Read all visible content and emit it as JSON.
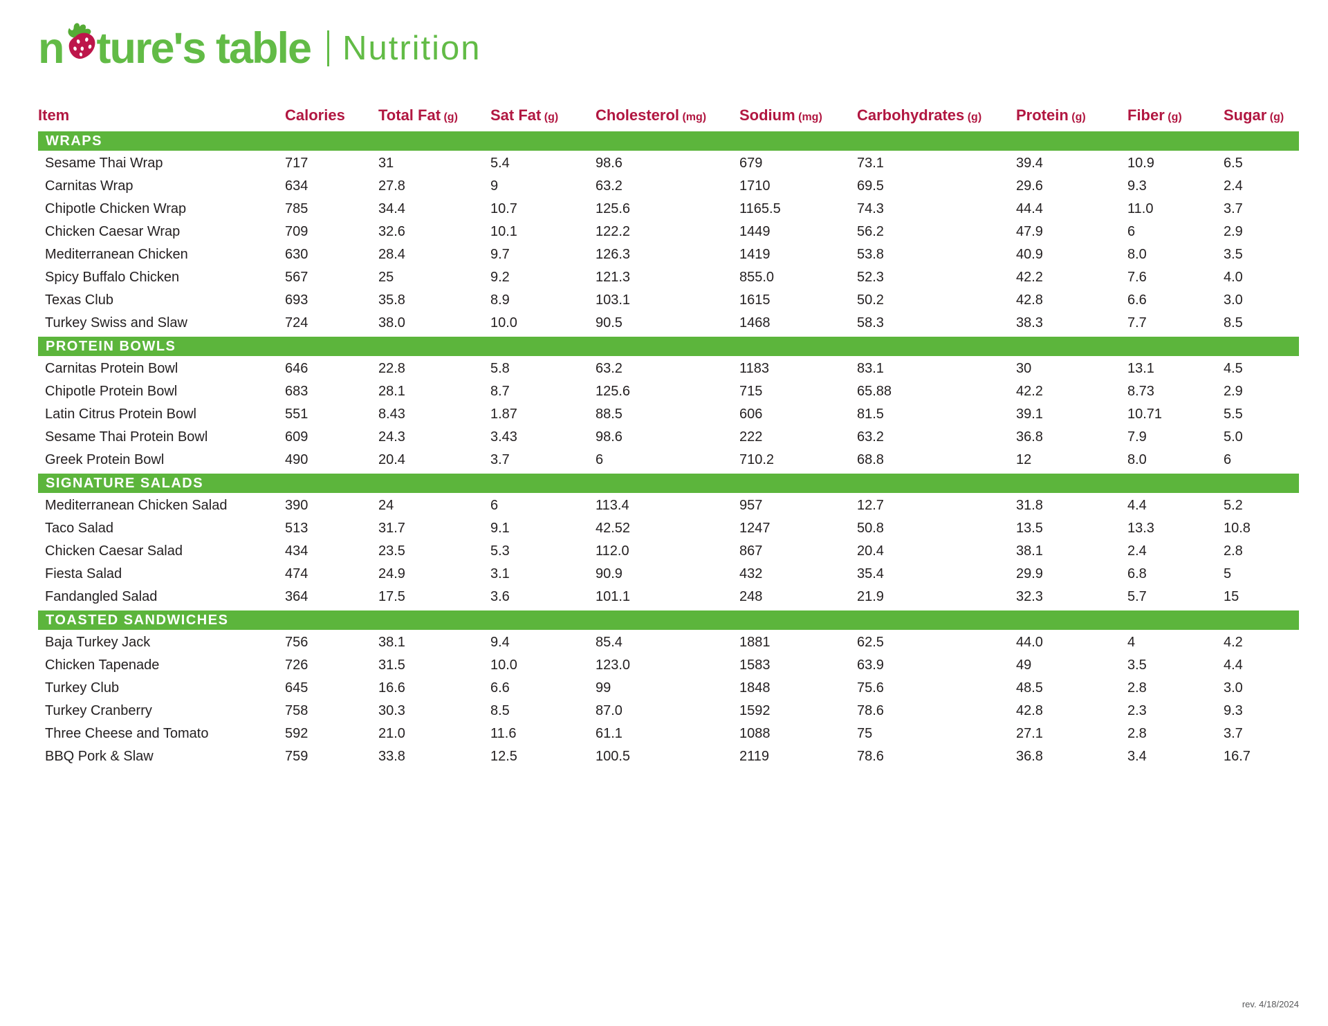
{
  "brand": {
    "prefix": "n",
    "suffix": "ture's table",
    "divider": "|",
    "page_title": "Nutrition"
  },
  "footer": {
    "revision": "rev. 4/18/2024"
  },
  "colors": {
    "green": "#5cb53c",
    "logo_green": "#62bb46",
    "red": "#b11741",
    "berry_red": "#bd164a",
    "leaf_green": "#55ab35",
    "text": "#231f20"
  },
  "table": {
    "columns": [
      {
        "label": "Item",
        "unit": ""
      },
      {
        "label": "Calories",
        "unit": ""
      },
      {
        "label": "Total Fat",
        "unit": "(g)"
      },
      {
        "label": "Sat Fat",
        "unit": "(g)"
      },
      {
        "label": "Cholesterol",
        "unit": "(mg)"
      },
      {
        "label": "Sodium",
        "unit": "(mg)"
      },
      {
        "label": "Carbohydrates",
        "unit": "(g)"
      },
      {
        "label": "Protein",
        "unit": "(g)"
      },
      {
        "label": "Fiber",
        "unit": "(g)"
      },
      {
        "label": "Sugar",
        "unit": "(g)"
      }
    ],
    "sections": [
      {
        "name": "WRAPS",
        "rows": [
          {
            "item": "Sesame Thai Wrap",
            "values": [
              "717",
              "31",
              "5.4",
              "98.6",
              "679",
              "73.1",
              "39.4",
              "10.9",
              "6.5"
            ]
          },
          {
            "item": "Carnitas Wrap",
            "values": [
              "634",
              "27.8",
              "9",
              "63.2",
              "1710",
              "69.5",
              "29.6",
              "9.3",
              "2.4"
            ]
          },
          {
            "item": "Chipotle Chicken Wrap",
            "values": [
              "785",
              "34.4",
              "10.7",
              "125.6",
              "1165.5",
              "74.3",
              "44.4",
              "11.0",
              "3.7"
            ]
          },
          {
            "item": "Chicken Caesar Wrap",
            "values": [
              "709",
              "32.6",
              "10.1",
              "122.2",
              "1449",
              "56.2",
              "47.9",
              "6",
              "2.9"
            ]
          },
          {
            "item": "Mediterranean Chicken",
            "values": [
              "630",
              "28.4",
              "9.7",
              "126.3",
              "1419",
              "53.8",
              "40.9",
              "8.0",
              "3.5"
            ]
          },
          {
            "item": "Spicy Buffalo Chicken",
            "values": [
              "567",
              "25",
              "9.2",
              "121.3",
              "855.0",
              "52.3",
              "42.2",
              "7.6",
              "4.0"
            ]
          },
          {
            "item": "Texas Club",
            "values": [
              "693",
              "35.8",
              "8.9",
              "103.1",
              "1615",
              "50.2",
              "42.8",
              "6.6",
              "3.0"
            ]
          },
          {
            "item": "Turkey Swiss and Slaw",
            "values": [
              "724",
              "38.0",
              "10.0",
              "90.5",
              "1468",
              "58.3",
              "38.3",
              "7.7",
              "8.5"
            ]
          }
        ]
      },
      {
        "name": "PROTEIN BOWLS",
        "rows": [
          {
            "item": "Carnitas Protein Bowl",
            "values": [
              "646",
              "22.8",
              "5.8",
              "63.2",
              "1183",
              "83.1",
              "30",
              "13.1",
              "4.5"
            ]
          },
          {
            "item": "Chipotle Protein Bowl",
            "values": [
              "683",
              "28.1",
              "8.7",
              "125.6",
              "715",
              "65.88",
              "42.2",
              "8.73",
              "2.9"
            ]
          },
          {
            "item": "Latin Citrus Protein Bowl",
            "values": [
              "551",
              "8.43",
              "1.87",
              "88.5",
              "606",
              "81.5",
              "39.1",
              "10.71",
              "5.5"
            ]
          },
          {
            "item": "Sesame Thai Protein Bowl",
            "values": [
              "609",
              "24.3",
              "3.43",
              "98.6",
              "222",
              "63.2",
              "36.8",
              "7.9",
              "5.0"
            ]
          },
          {
            "item": "Greek Protein Bowl",
            "values": [
              "490",
              "20.4",
              "3.7",
              "6",
              "710.2",
              "68.8",
              "12",
              "8.0",
              "6"
            ]
          }
        ]
      },
      {
        "name": "SIGNATURE SALADS",
        "rows": [
          {
            "item": "Mediterranean Chicken Salad",
            "values": [
              "390",
              "24",
              "6",
              "113.4",
              "957",
              "12.7",
              "31.8",
              "4.4",
              "5.2"
            ]
          },
          {
            "item": "Taco Salad",
            "values": [
              "513",
              "31.7",
              "9.1",
              "42.52",
              "1247",
              "50.8",
              "13.5",
              "13.3",
              "10.8"
            ]
          },
          {
            "item": "Chicken Caesar Salad",
            "values": [
              "434",
              "23.5",
              "5.3",
              "112.0",
              "867",
              "20.4",
              "38.1",
              "2.4",
              "2.8"
            ]
          },
          {
            "item": "Fiesta Salad",
            "values": [
              "474",
              "24.9",
              "3.1",
              "90.9",
              "432",
              "35.4",
              "29.9",
              "6.8",
              "5"
            ]
          },
          {
            "item": "Fandangled Salad",
            "values": [
              "364",
              "17.5",
              "3.6",
              "101.1",
              "248",
              "21.9",
              "32.3",
              "5.7",
              "15"
            ]
          }
        ]
      },
      {
        "name": "TOASTED SANDWICHES",
        "rows": [
          {
            "item": "Baja Turkey Jack",
            "values": [
              "756",
              "38.1",
              "9.4",
              "85.4",
              "1881",
              "62.5",
              "44.0",
              "4",
              "4.2"
            ]
          },
          {
            "item": "Chicken Tapenade",
            "values": [
              "726",
              "31.5",
              "10.0",
              "123.0",
              "1583",
              "63.9",
              "49",
              "3.5",
              "4.4"
            ]
          },
          {
            "item": "Turkey Club",
            "values": [
              "645",
              "16.6",
              "6.6",
              "99",
              "1848",
              "75.6",
              "48.5",
              "2.8",
              "3.0"
            ]
          },
          {
            "item": "Turkey Cranberry",
            "values": [
              "758",
              "30.3",
              "8.5",
              "87.0",
              "1592",
              "78.6",
              "42.8",
              "2.3",
              "9.3"
            ]
          },
          {
            "item": "Three Cheese and Tomato",
            "values": [
              "592",
              "21.0",
              "11.6",
              "61.1",
              "1088",
              "75",
              "27.1",
              "2.8",
              "3.7"
            ]
          },
          {
            "item": "BBQ Pork & Slaw",
            "values": [
              "759",
              "33.8",
              "12.5",
              "100.5",
              "2119",
              "78.6",
              "36.8",
              "3.4",
              "16.7"
            ]
          }
        ]
      }
    ]
  }
}
